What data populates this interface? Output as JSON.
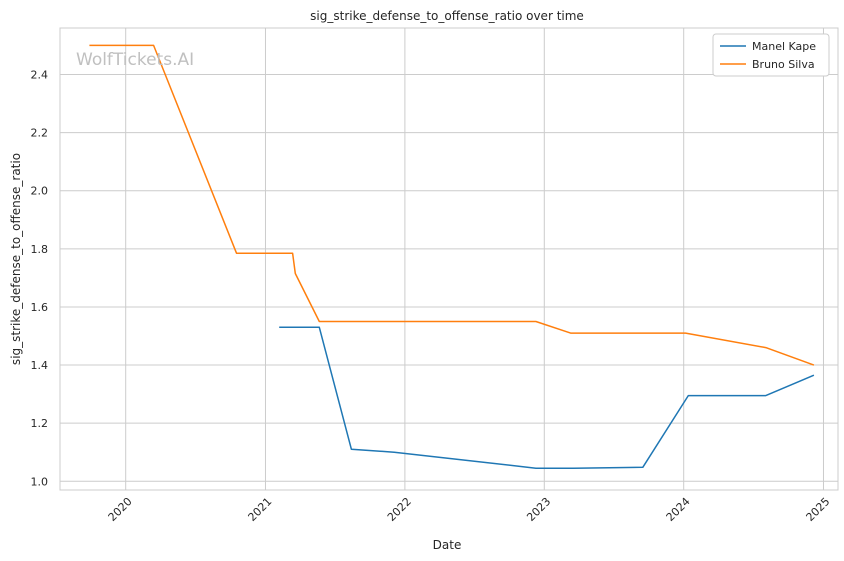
{
  "chart_data": {
    "type": "line",
    "title": "sig_strike_defense_to_offense_ratio over time",
    "xlabel": "Date",
    "ylabel": "sig_strike_defense_to_offense_ratio",
    "watermark": "WolfTickets.AI",
    "x_ticks": [
      "2020",
      "2021",
      "2022",
      "2023",
      "2024",
      "2025"
    ],
    "y_ticks": [
      "1.0",
      "1.2",
      "1.4",
      "1.6",
      "1.8",
      "2.0",
      "2.2",
      "2.4"
    ],
    "xlim": [
      "2019-07-13",
      "2025-02-08"
    ],
    "ylim": [
      0.97,
      2.56
    ],
    "grid": true,
    "legend_position": "top-right",
    "series": [
      {
        "name": "Manel Kape",
        "color": "#1f77b4",
        "points": [
          {
            "x": "2021-02-06",
            "y": 1.53
          },
          {
            "x": "2021-05-22",
            "y": 1.53
          },
          {
            "x": "2021-08-14",
            "y": 1.11
          },
          {
            "x": "2021-12-04",
            "y": 1.1
          },
          {
            "x": "2022-12-10",
            "y": 1.045
          },
          {
            "x": "2023-03-18",
            "y": 1.045
          },
          {
            "x": "2023-09-16",
            "y": 1.048
          },
          {
            "x": "2024-01-13",
            "y": 1.295
          },
          {
            "x": "2024-08-03",
            "y": 1.295
          },
          {
            "x": "2024-12-07",
            "y": 1.365
          }
        ]
      },
      {
        "name": "Bruno Silva",
        "color": "#ff7f0e",
        "points": [
          {
            "x": "2019-09-28",
            "y": 2.5
          },
          {
            "x": "2020-03-14",
            "y": 2.5
          },
          {
            "x": "2020-10-17",
            "y": 1.785
          },
          {
            "x": "2021-03-13",
            "y": 1.785
          },
          {
            "x": "2021-03-20",
            "y": 1.715
          },
          {
            "x": "2021-05-22",
            "y": 1.55
          },
          {
            "x": "2022-12-10",
            "y": 1.55
          },
          {
            "x": "2023-03-11",
            "y": 1.51
          },
          {
            "x": "2024-01-06",
            "y": 1.51
          },
          {
            "x": "2024-08-03",
            "y": 1.46
          },
          {
            "x": "2024-12-07",
            "y": 1.4
          }
        ]
      }
    ]
  }
}
